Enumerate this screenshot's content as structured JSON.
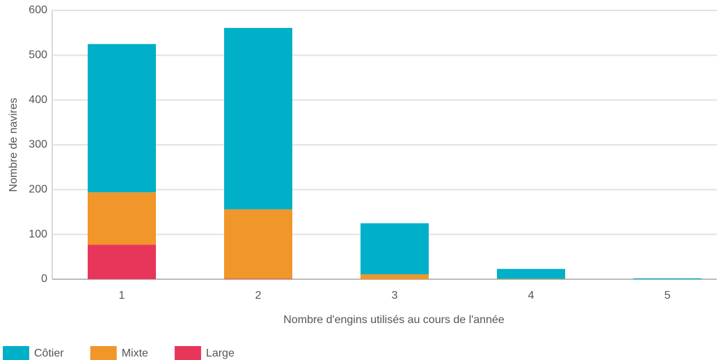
{
  "chart_data": {
    "type": "bar",
    "stacked": true,
    "x_label": "Nombre d'engins utilisés au cours de l'année",
    "y_label": "Nombre de navires",
    "categories": [
      "1",
      "2",
      "3",
      "4",
      "5"
    ],
    "series": [
      {
        "name": "Côtier",
        "color": "#00b0c8",
        "values": [
          331,
          405,
          114,
          22,
          2
        ]
      },
      {
        "name": "Mixte",
        "color": "#f0962a",
        "values": [
          117,
          155,
          11,
          1,
          0
        ]
      },
      {
        "name": "Large",
        "color": "#e8365a",
        "values": [
          77,
          1,
          0,
          0,
          0
        ]
      }
    ],
    "ylim": [
      0,
      600
    ],
    "yticks": [
      0,
      100,
      200,
      300,
      400,
      500,
      600
    ],
    "grid": true
  }
}
